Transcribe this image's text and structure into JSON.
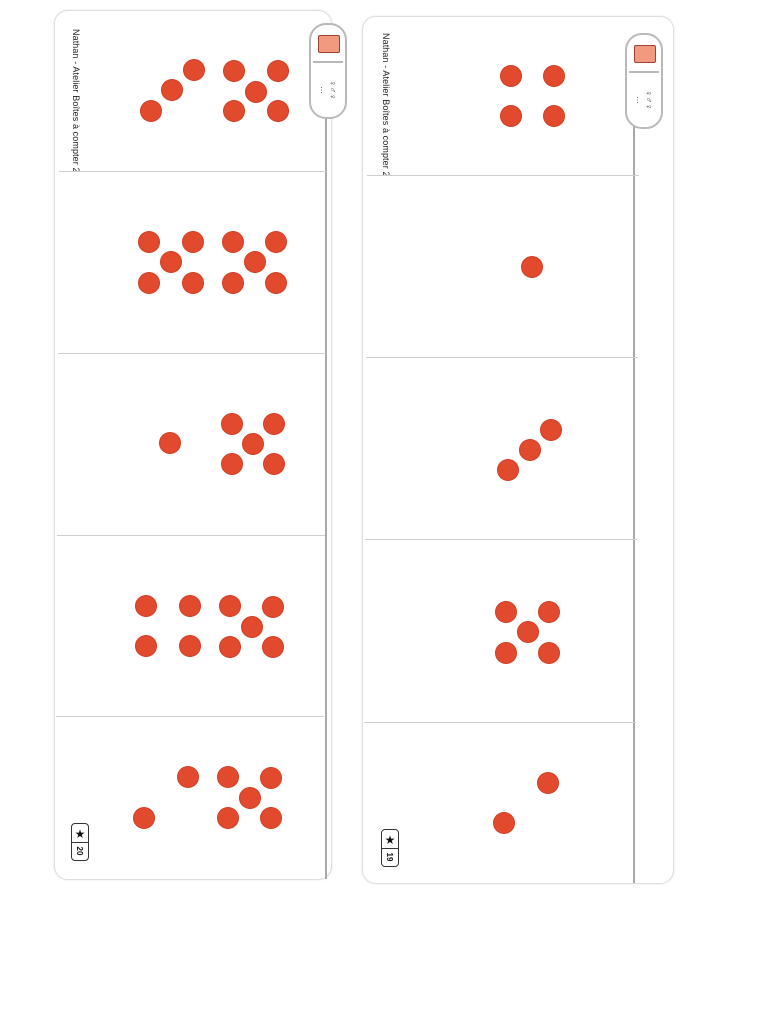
{
  "cards": {
    "left": {
      "header": "Nathan - Atelier Boîtes à compter 2",
      "page_number": "20",
      "icons": {
        "box": "orange-box-icon",
        "people": "people-group-icon",
        "star": "star-icon"
      },
      "rows": [
        {
          "count": 8
        },
        {
          "count": 10
        },
        {
          "count": 6
        },
        {
          "count": 9
        },
        {
          "count": 7
        }
      ]
    },
    "right": {
      "header": "Nathan - Atelier Boîtes à compter 2",
      "page_number": "19",
      "icons": {
        "box": "orange-box-icon",
        "people": "people-group-icon",
        "star": "star-icon"
      },
      "rows": [
        {
          "count": 4
        },
        {
          "count": 1
        },
        {
          "count": 3
        },
        {
          "count": 5
        },
        {
          "count": 2
        }
      ]
    }
  },
  "colors": {
    "dot": "#e24a2e",
    "box_fill": "#f29a80",
    "box_border": "#a04030",
    "spine": "#a8a8a8"
  }
}
